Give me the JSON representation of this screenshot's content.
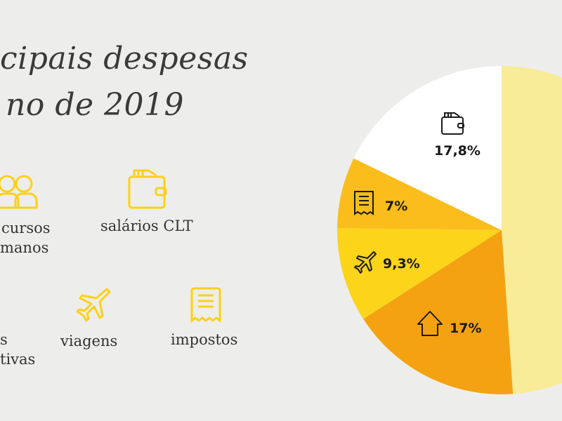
{
  "title": {
    "line1": "cipais despesas",
    "line2": "no de 2019"
  },
  "legend": [
    {
      "icon": "people-icon",
      "lines": [
        "cursos",
        "manos"
      ]
    },
    {
      "icon": "wallet-icon",
      "lines": [
        "salários CLT"
      ]
    },
    {
      "icon": "unknown",
      "lines": [
        "s",
        "tivas"
      ]
    },
    {
      "icon": "airplane-icon",
      "lines": [
        "viagens"
      ]
    },
    {
      "icon": "receipt-icon",
      "lines": [
        "impostos"
      ]
    }
  ],
  "colors": {
    "background": "#ededeb",
    "icon": "#fcd116",
    "text": "#333333"
  },
  "chart_data": {
    "type": "pie",
    "start": "top",
    "direction": "clockwise",
    "slices": [
      {
        "value": 48.9,
        "label": "",
        "icon": "",
        "color": "#f9ec98"
      },
      {
        "value": 17,
        "label": "17%",
        "icon": "house-icon",
        "color": "#f4a212"
      },
      {
        "value": 9.3,
        "label": "9,3%",
        "icon": "airplane-icon",
        "color": "#fcd41a"
      },
      {
        "value": 7,
        "label": "7%",
        "icon": "receipt-icon",
        "color": "#fbbd1c"
      },
      {
        "value": 17.8,
        "label": "17,8%",
        "icon": "wallet-icon",
        "color": "#ffffff"
      }
    ]
  }
}
